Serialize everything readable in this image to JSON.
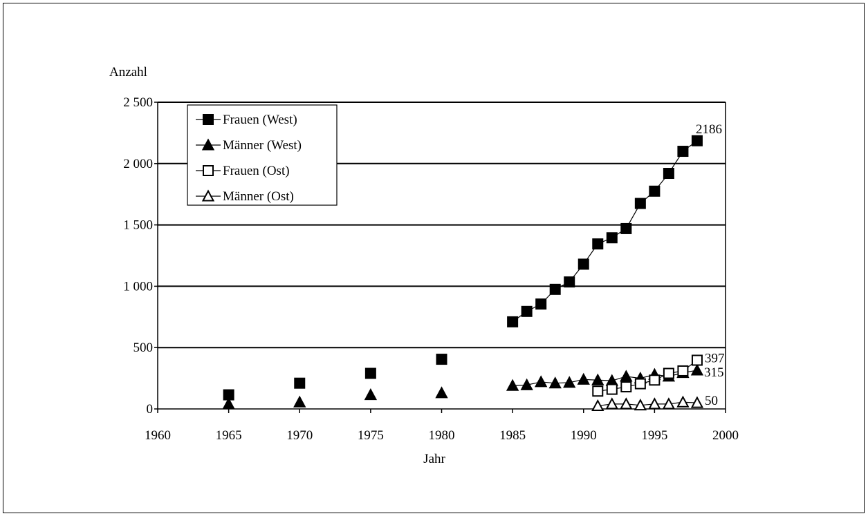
{
  "chart_data": {
    "type": "line",
    "title": "",
    "xlabel": "Jahr",
    "ylabel": "Anzahl",
    "xlim": [
      1960,
      2000
    ],
    "ylim": [
      0,
      2500
    ],
    "x_ticks": [
      1960,
      1965,
      1970,
      1975,
      1980,
      1985,
      1990,
      1995,
      2000
    ],
    "x_tick_labels": [
      "1960",
      "1965",
      "1970",
      "1975",
      "1980",
      "1985",
      "1990",
      "1995",
      "2000"
    ],
    "y_ticks": [
      0,
      500,
      1000,
      1500,
      2000,
      2500
    ],
    "y_tick_labels": [
      "0",
      "500",
      "1 000",
      "1 500",
      "2 000",
      "2 500"
    ],
    "grid": "horizontal",
    "legend_position": "top-left",
    "series": [
      {
        "name": "Frauen (West)",
        "marker": "square-filled",
        "x": [
          1965,
          1970,
          1975,
          1980,
          1985,
          1986,
          1987,
          1988,
          1989,
          1990,
          1991,
          1992,
          1993,
          1994,
          1995,
          1996,
          1997,
          1998
        ],
        "values": [
          115,
          210,
          290,
          405,
          710,
          795,
          855,
          975,
          1035,
          1180,
          1345,
          1395,
          1470,
          1675,
          1775,
          1920,
          2100,
          2186
        ],
        "connected_from_index": 4,
        "end_label": "2186"
      },
      {
        "name": "Männer (West)",
        "marker": "triangle-filled",
        "x": [
          1965,
          1970,
          1975,
          1980,
          1985,
          1986,
          1987,
          1988,
          1989,
          1990,
          1991,
          1992,
          1993,
          1994,
          1995,
          1996,
          1997,
          1998
        ],
        "values": [
          40,
          55,
          115,
          130,
          190,
          195,
          220,
          210,
          215,
          240,
          235,
          230,
          265,
          250,
          280,
          265,
          295,
          315
        ],
        "connected_from_index": 4,
        "end_label": "315"
      },
      {
        "name": "Frauen (Ost)",
        "marker": "square-open",
        "x": [
          1991,
          1992,
          1993,
          1994,
          1995,
          1996,
          1997,
          1998
        ],
        "values": [
          145,
          160,
          180,
          205,
          235,
          290,
          310,
          397
        ],
        "connected_from_index": 0,
        "end_label": "397"
      },
      {
        "name": "Männer (Ost)",
        "marker": "triangle-open",
        "x": [
          1991,
          1992,
          1993,
          1994,
          1995,
          1996,
          1997,
          1998
        ],
        "values": [
          25,
          40,
          40,
          30,
          40,
          40,
          55,
          50
        ],
        "connected_from_index": 0,
        "end_label": "50"
      }
    ]
  }
}
